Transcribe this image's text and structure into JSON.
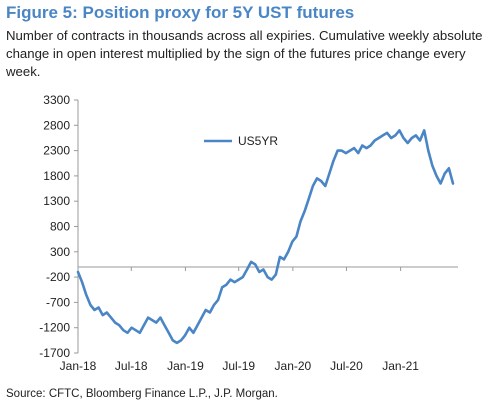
{
  "figure": {
    "title": "Figure 5: Position proxy for 5Y UST futures",
    "subtitle": "Number of contracts in thousands across all expiries. Cumulative weekly absolute change in open interest multiplied by the sign of the futures price change every week.",
    "source": "Source: CFTC, Bloomberg Finance L.P., J.P. Morgan."
  },
  "colors": {
    "title": "#4a86c5",
    "line": "#4a86c5",
    "axis": "#9a9a9a",
    "text": "#222222"
  },
  "chart_data": {
    "type": "line",
    "title": "",
    "xlabel": "",
    "ylabel": "",
    "ylim": [
      -1700,
      3300
    ],
    "yticks": [
      -1700,
      -1200,
      -700,
      -200,
      300,
      800,
      1300,
      1800,
      2300,
      2800,
      3300
    ],
    "ytick_labels": [
      "-1700",
      "-1200",
      "-700",
      "-200",
      "300",
      "800",
      "1300",
      "1800",
      "2300",
      "2800",
      "3300"
    ],
    "xlim": [
      "2018-01-01",
      "2021-07-15"
    ],
    "xticks": [
      "2018-01-01",
      "2018-07-01",
      "2019-01-01",
      "2019-07-01",
      "2020-01-01",
      "2020-07-01",
      "2021-01-01"
    ],
    "xtick_labels": [
      "Jan-18",
      "Jul-18",
      "Jan-19",
      "Jul-19",
      "Jan-20",
      "Jul-20",
      "Jan-21"
    ],
    "grid": false,
    "legend": {
      "position": "top-center"
    },
    "series": [
      {
        "name": "US5YR",
        "x": [
          "2018-01-01",
          "2018-01-15",
          "2018-01-29",
          "2018-02-12",
          "2018-02-26",
          "2018-03-12",
          "2018-03-26",
          "2018-04-09",
          "2018-04-23",
          "2018-05-07",
          "2018-05-21",
          "2018-06-04",
          "2018-06-18",
          "2018-07-02",
          "2018-07-16",
          "2018-07-30",
          "2018-08-13",
          "2018-08-27",
          "2018-09-10",
          "2018-09-24",
          "2018-10-08",
          "2018-10-22",
          "2018-11-05",
          "2018-11-19",
          "2018-12-03",
          "2018-12-17",
          "2018-12-31",
          "2019-01-14",
          "2019-01-28",
          "2019-02-11",
          "2019-02-25",
          "2019-03-11",
          "2019-03-25",
          "2019-04-08",
          "2019-04-22",
          "2019-05-06",
          "2019-05-20",
          "2019-06-03",
          "2019-06-17",
          "2019-07-01",
          "2019-07-15",
          "2019-07-29",
          "2019-08-12",
          "2019-08-26",
          "2019-09-09",
          "2019-09-23",
          "2019-10-07",
          "2019-10-21",
          "2019-11-04",
          "2019-11-18",
          "2019-12-02",
          "2019-12-16",
          "2019-12-30",
          "2020-01-13",
          "2020-01-27",
          "2020-02-10",
          "2020-02-24",
          "2020-03-09",
          "2020-03-23",
          "2020-04-06",
          "2020-04-20",
          "2020-05-04",
          "2020-05-18",
          "2020-06-01",
          "2020-06-15",
          "2020-06-29",
          "2020-07-13",
          "2020-07-27",
          "2020-08-10",
          "2020-08-24",
          "2020-09-07",
          "2020-09-21",
          "2020-10-05",
          "2020-10-19",
          "2020-11-02",
          "2020-11-16",
          "2020-11-30",
          "2020-12-14",
          "2020-12-28",
          "2021-01-11",
          "2021-01-25",
          "2021-02-08",
          "2021-02-22",
          "2021-03-08",
          "2021-03-22",
          "2021-04-05",
          "2021-04-19",
          "2021-05-03",
          "2021-05-17",
          "2021-05-31",
          "2021-06-14",
          "2021-06-28"
        ],
        "values": [
          -100,
          -300,
          -550,
          -750,
          -850,
          -800,
          -950,
          -900,
          -1000,
          -1100,
          -1150,
          -1250,
          -1300,
          -1200,
          -1250,
          -1300,
          -1150,
          -1000,
          -1050,
          -1100,
          -1000,
          -1150,
          -1300,
          -1450,
          -1500,
          -1450,
          -1350,
          -1200,
          -1300,
          -1150,
          -1000,
          -850,
          -900,
          -750,
          -650,
          -400,
          -350,
          -250,
          -300,
          -250,
          -200,
          -50,
          100,
          50,
          -100,
          -50,
          -200,
          -250,
          -150,
          200,
          150,
          300,
          500,
          600,
          900,
          1100,
          1350,
          1600,
          1750,
          1700,
          1600,
          1850,
          2100,
          2300,
          2300,
          2250,
          2300,
          2350,
          2250,
          2400,
          2350,
          2400,
          2500,
          2550,
          2600,
          2650,
          2550,
          2600,
          2700,
          2550,
          2450,
          2550,
          2600,
          2500,
          2700,
          2300,
          2000,
          1800,
          1650,
          1850,
          1950,
          1650
        ]
      }
    ]
  }
}
